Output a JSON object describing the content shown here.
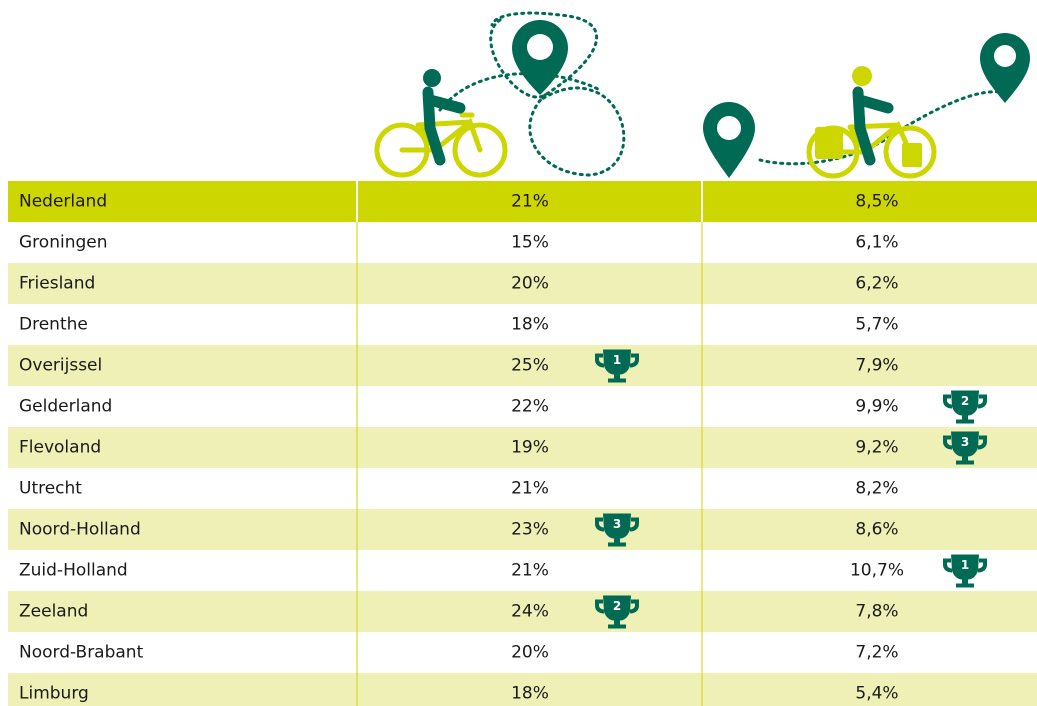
{
  "table": {
    "rows": [
      {
        "name": "Nederland",
        "a": "21%",
        "b": "8,5%"
      },
      {
        "name": "Groningen",
        "a": "15%",
        "b": "6,1%"
      },
      {
        "name": "Friesland",
        "a": "20%",
        "b": "6,2%"
      },
      {
        "name": "Drenthe",
        "a": "18%",
        "b": "5,7%"
      },
      {
        "name": "Overijssel",
        "a": "25%",
        "b": "7,9%",
        "rank_a": 1
      },
      {
        "name": "Gelderland",
        "a": "22%",
        "b": "9,9%",
        "rank_b": 2
      },
      {
        "name": "Flevoland",
        "a": "19%",
        "b": "9,2%",
        "rank_b": 3
      },
      {
        "name": "Utrecht",
        "a": "21%",
        "b": "8,2%"
      },
      {
        "name": "Noord-Holland",
        "a": "23%",
        "b": "8,6%",
        "rank_a": 3
      },
      {
        "name": "Zuid-Holland",
        "a": "21%",
        "b": "10,7%",
        "rank_b": 1
      },
      {
        "name": "Zeeland",
        "a": "24%",
        "b": "7,8%",
        "rank_a": 2
      },
      {
        "name": "Noord-Brabant",
        "a": "20%",
        "b": "7,2%"
      },
      {
        "name": "Limburg",
        "a": "18%",
        "b": "5,4%"
      }
    ]
  }
}
